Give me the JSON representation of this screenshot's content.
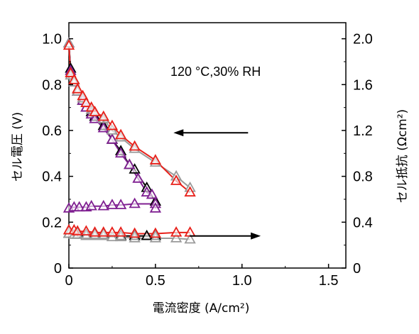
{
  "chart_data": {
    "type": "line",
    "title": "",
    "annotation": "120 °C,30% RH",
    "xlabel": "電流密度 (A/cm²)",
    "ylabel_left": "セル電圧 (V)",
    "ylabel_right": "セル抵抗 (Ωcm²)",
    "xlim": [
      0,
      1.6
    ],
    "ylim_left": [
      0,
      1.07
    ],
    "ylim_right": [
      0,
      2.14
    ],
    "x_ticks": [
      "0",
      "0.5",
      "1.0",
      "1.5"
    ],
    "y_left_ticks": [
      "0",
      "0.2",
      "0.4",
      "0.6",
      "0.8",
      "1.0"
    ],
    "y_right_ticks": [
      "0",
      "0.4",
      "0.8",
      "1.2",
      "1.6",
      "2.0"
    ],
    "arrows": [
      {
        "direction": "left",
        "points_to": "left-axis",
        "at_x": 0.83,
        "at_y_left": 0.59
      },
      {
        "direction": "right",
        "points_to": "right-axis",
        "at_x": 0.78,
        "at_y_left": 0.14
      }
    ],
    "series": [
      {
        "axis": "left",
        "color": "#000000",
        "marker": "triangle",
        "x": [
          0,
          0.01,
          0.03,
          0.05,
          0.08,
          0.1,
          0.13,
          0.15,
          0.2,
          0.25,
          0.3,
          0.35,
          0.38,
          0.45,
          0.5
        ],
        "y": [
          0.98,
          0.87,
          0.82,
          0.77,
          0.73,
          0.7,
          0.68,
          0.66,
          0.62,
          0.56,
          0.51,
          0.45,
          0.43,
          0.35,
          0.29
        ]
      },
      {
        "axis": "left",
        "color": "#7f1f91",
        "marker": "triangle",
        "x": [
          0,
          0.01,
          0.03,
          0.05,
          0.08,
          0.1,
          0.13,
          0.15,
          0.2,
          0.25,
          0.3,
          0.35,
          0.4,
          0.45,
          0.48
        ],
        "y": [
          0.98,
          0.86,
          0.81,
          0.77,
          0.73,
          0.7,
          0.67,
          0.65,
          0.61,
          0.56,
          0.5,
          0.45,
          0.39,
          0.33,
          0.32
        ]
      },
      {
        "axis": "left",
        "color": "#9a9a9a",
        "marker": "triangle",
        "x": [
          0,
          0.01,
          0.03,
          0.05,
          0.08,
          0.1,
          0.13,
          0.15,
          0.2,
          0.25,
          0.3,
          0.38,
          0.5,
          0.62,
          0.7
        ],
        "y": [
          0.98,
          0.84,
          0.81,
          0.77,
          0.74,
          0.72,
          0.69,
          0.68,
          0.65,
          0.6,
          0.57,
          0.52,
          0.46,
          0.4,
          0.35
        ]
      },
      {
        "axis": "left",
        "color": "#e8201a",
        "marker": "triangle",
        "x": [
          0,
          0.01,
          0.03,
          0.05,
          0.08,
          0.1,
          0.13,
          0.15,
          0.2,
          0.25,
          0.3,
          0.38,
          0.5,
          0.62,
          0.7
        ],
        "y": [
          0.97,
          0.85,
          0.82,
          0.78,
          0.75,
          0.72,
          0.7,
          0.68,
          0.66,
          0.62,
          0.58,
          0.53,
          0.47,
          0.38,
          0.33
        ]
      },
      {
        "axis": "right",
        "color": "#7f1f91",
        "marker": "triangle",
        "x": [
          0,
          0.03,
          0.06,
          0.1,
          0.13,
          0.2,
          0.25,
          0.3,
          0.38,
          0.5,
          0.5
        ],
        "y": [
          0.52,
          0.53,
          0.53,
          0.53,
          0.54,
          0.54,
          0.55,
          0.55,
          0.56,
          0.56,
          0.52
        ]
      },
      {
        "axis": "right",
        "color": "#000000",
        "marker": "triangle",
        "x": [
          0,
          0.05,
          0.1,
          0.15,
          0.2,
          0.3,
          0.38,
          0.45,
          0.5
        ],
        "y": [
          0.3,
          0.3,
          0.29,
          0.29,
          0.29,
          0.28,
          0.28,
          0.28,
          0.28
        ]
      },
      {
        "axis": "right",
        "color": "#9a9a9a",
        "marker": "triangle",
        "x": [
          0,
          0.03,
          0.05,
          0.1,
          0.15,
          0.2,
          0.25,
          0.3,
          0.38,
          0.5,
          0.62,
          0.7
        ],
        "y": [
          0.3,
          0.29,
          0.29,
          0.28,
          0.28,
          0.28,
          0.27,
          0.27,
          0.26,
          0.26,
          0.26,
          0.25
        ]
      },
      {
        "axis": "right",
        "color": "#e8201a",
        "marker": "triangle",
        "x": [
          0,
          0.03,
          0.05,
          0.1,
          0.15,
          0.2,
          0.25,
          0.3,
          0.38,
          0.5,
          0.62,
          0.7
        ],
        "y": [
          0.33,
          0.33,
          0.32,
          0.32,
          0.31,
          0.31,
          0.31,
          0.31,
          0.3,
          0.3,
          0.31,
          0.31
        ]
      }
    ]
  }
}
